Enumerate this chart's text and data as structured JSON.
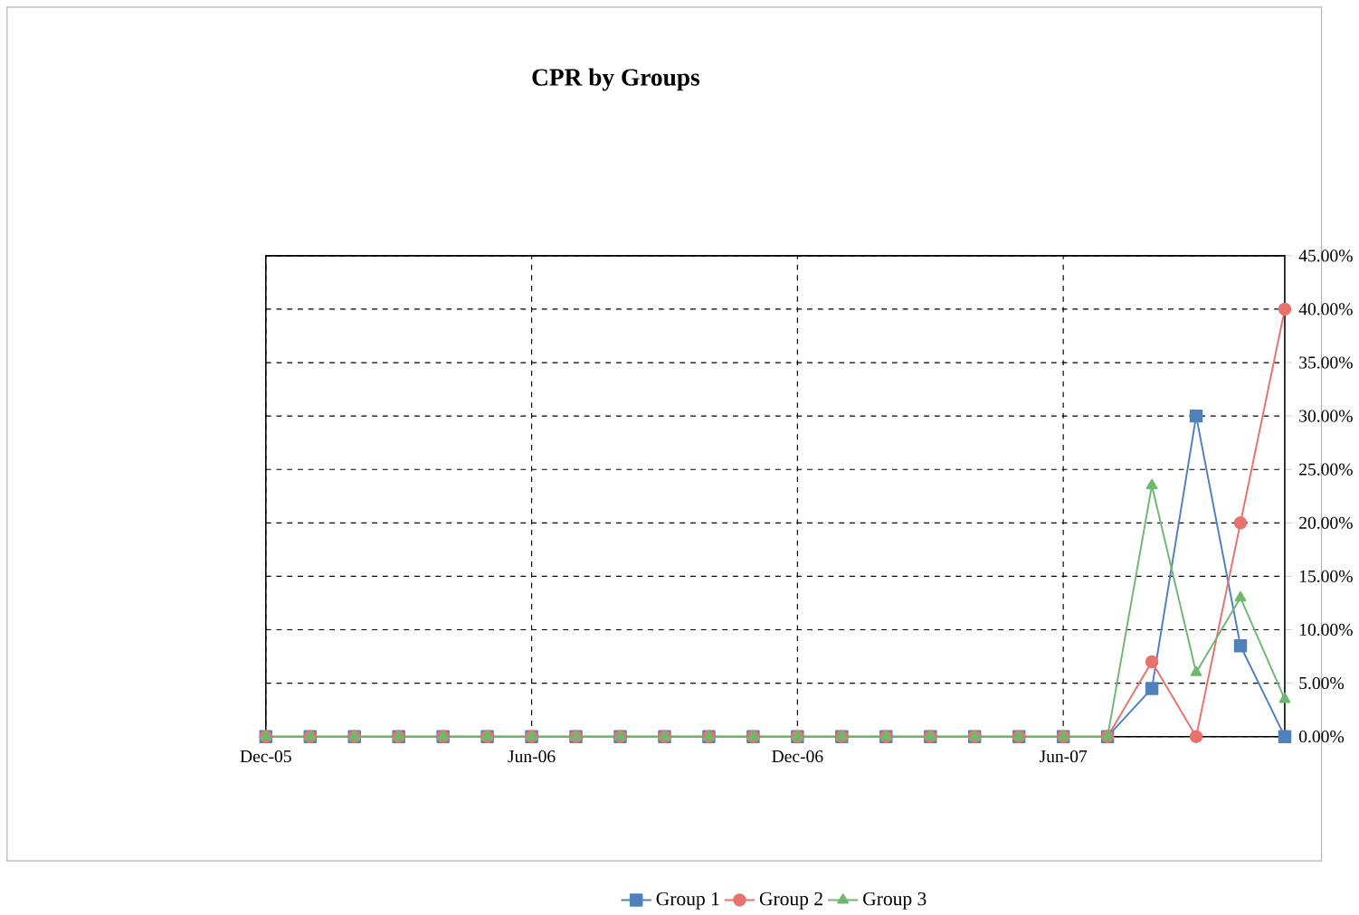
{
  "chart_data": {
    "type": "line",
    "title": "CPR by Groups",
    "x": [
      "2005-12",
      "2006-01",
      "2006-02",
      "2006-03",
      "2006-04",
      "2006-05",
      "2006-06",
      "2006-07",
      "2006-08",
      "2006-09",
      "2006-10",
      "2006-11",
      "2006-12",
      "2007-01",
      "2007-02",
      "2007-03",
      "2007-04",
      "2007-05",
      "2007-06",
      "2007-07",
      "2007-08",
      "2007-09",
      "2007-10",
      "2007-11"
    ],
    "series": [
      {
        "name": "Group 1",
        "color": "#4f81bd",
        "marker": "square",
        "values": [
          0,
          0,
          0,
          0,
          0,
          0,
          0,
          0,
          0,
          0,
          0,
          0,
          0,
          0,
          0,
          0,
          0,
          0,
          0,
          0,
          4.5,
          30,
          8.5,
          0
        ]
      },
      {
        "name": "Group 2",
        "color": "#e8726c",
        "marker": "circle",
        "values": [
          0,
          0,
          0,
          0,
          0,
          0,
          0,
          0,
          0,
          0,
          0,
          0,
          0,
          0,
          0,
          0,
          0,
          0,
          0,
          0,
          7,
          0,
          20,
          40
        ]
      },
      {
        "name": "Group 3",
        "color": "#6fb86f",
        "marker": "triangle",
        "values": [
          0,
          0,
          0,
          0,
          0,
          0,
          0,
          0,
          0,
          0,
          0,
          0,
          0,
          0,
          0,
          0,
          0,
          0,
          0,
          0,
          23.5,
          6,
          13,
          3.5
        ]
      }
    ],
    "xlim": [
      "2005-12",
      "2007-11"
    ],
    "xticks": [
      {
        "value": "2005-12",
        "label": "Dec-05"
      },
      {
        "value": "2006-06",
        "label": "Jun-06"
      },
      {
        "value": "2006-12",
        "label": "Dec-06"
      },
      {
        "value": "2007-06",
        "label": "Jun-07"
      }
    ],
    "ylim": [
      0,
      45
    ],
    "yticks": [
      {
        "value": 0,
        "label": "0.00%"
      },
      {
        "value": 5,
        "label": "5.00%"
      },
      {
        "value": 10,
        "label": "10.00%"
      },
      {
        "value": 15,
        "label": "15.00%"
      },
      {
        "value": 20,
        "label": "20.00%"
      },
      {
        "value": 25,
        "label": "25.00%"
      },
      {
        "value": 30,
        "label": "30.00%"
      },
      {
        "value": 35,
        "label": "35.00%"
      },
      {
        "value": 40,
        "label": "40.00%"
      },
      {
        "value": 45,
        "label": "45.00%"
      }
    ],
    "grid": true,
    "legend": "bottom"
  }
}
